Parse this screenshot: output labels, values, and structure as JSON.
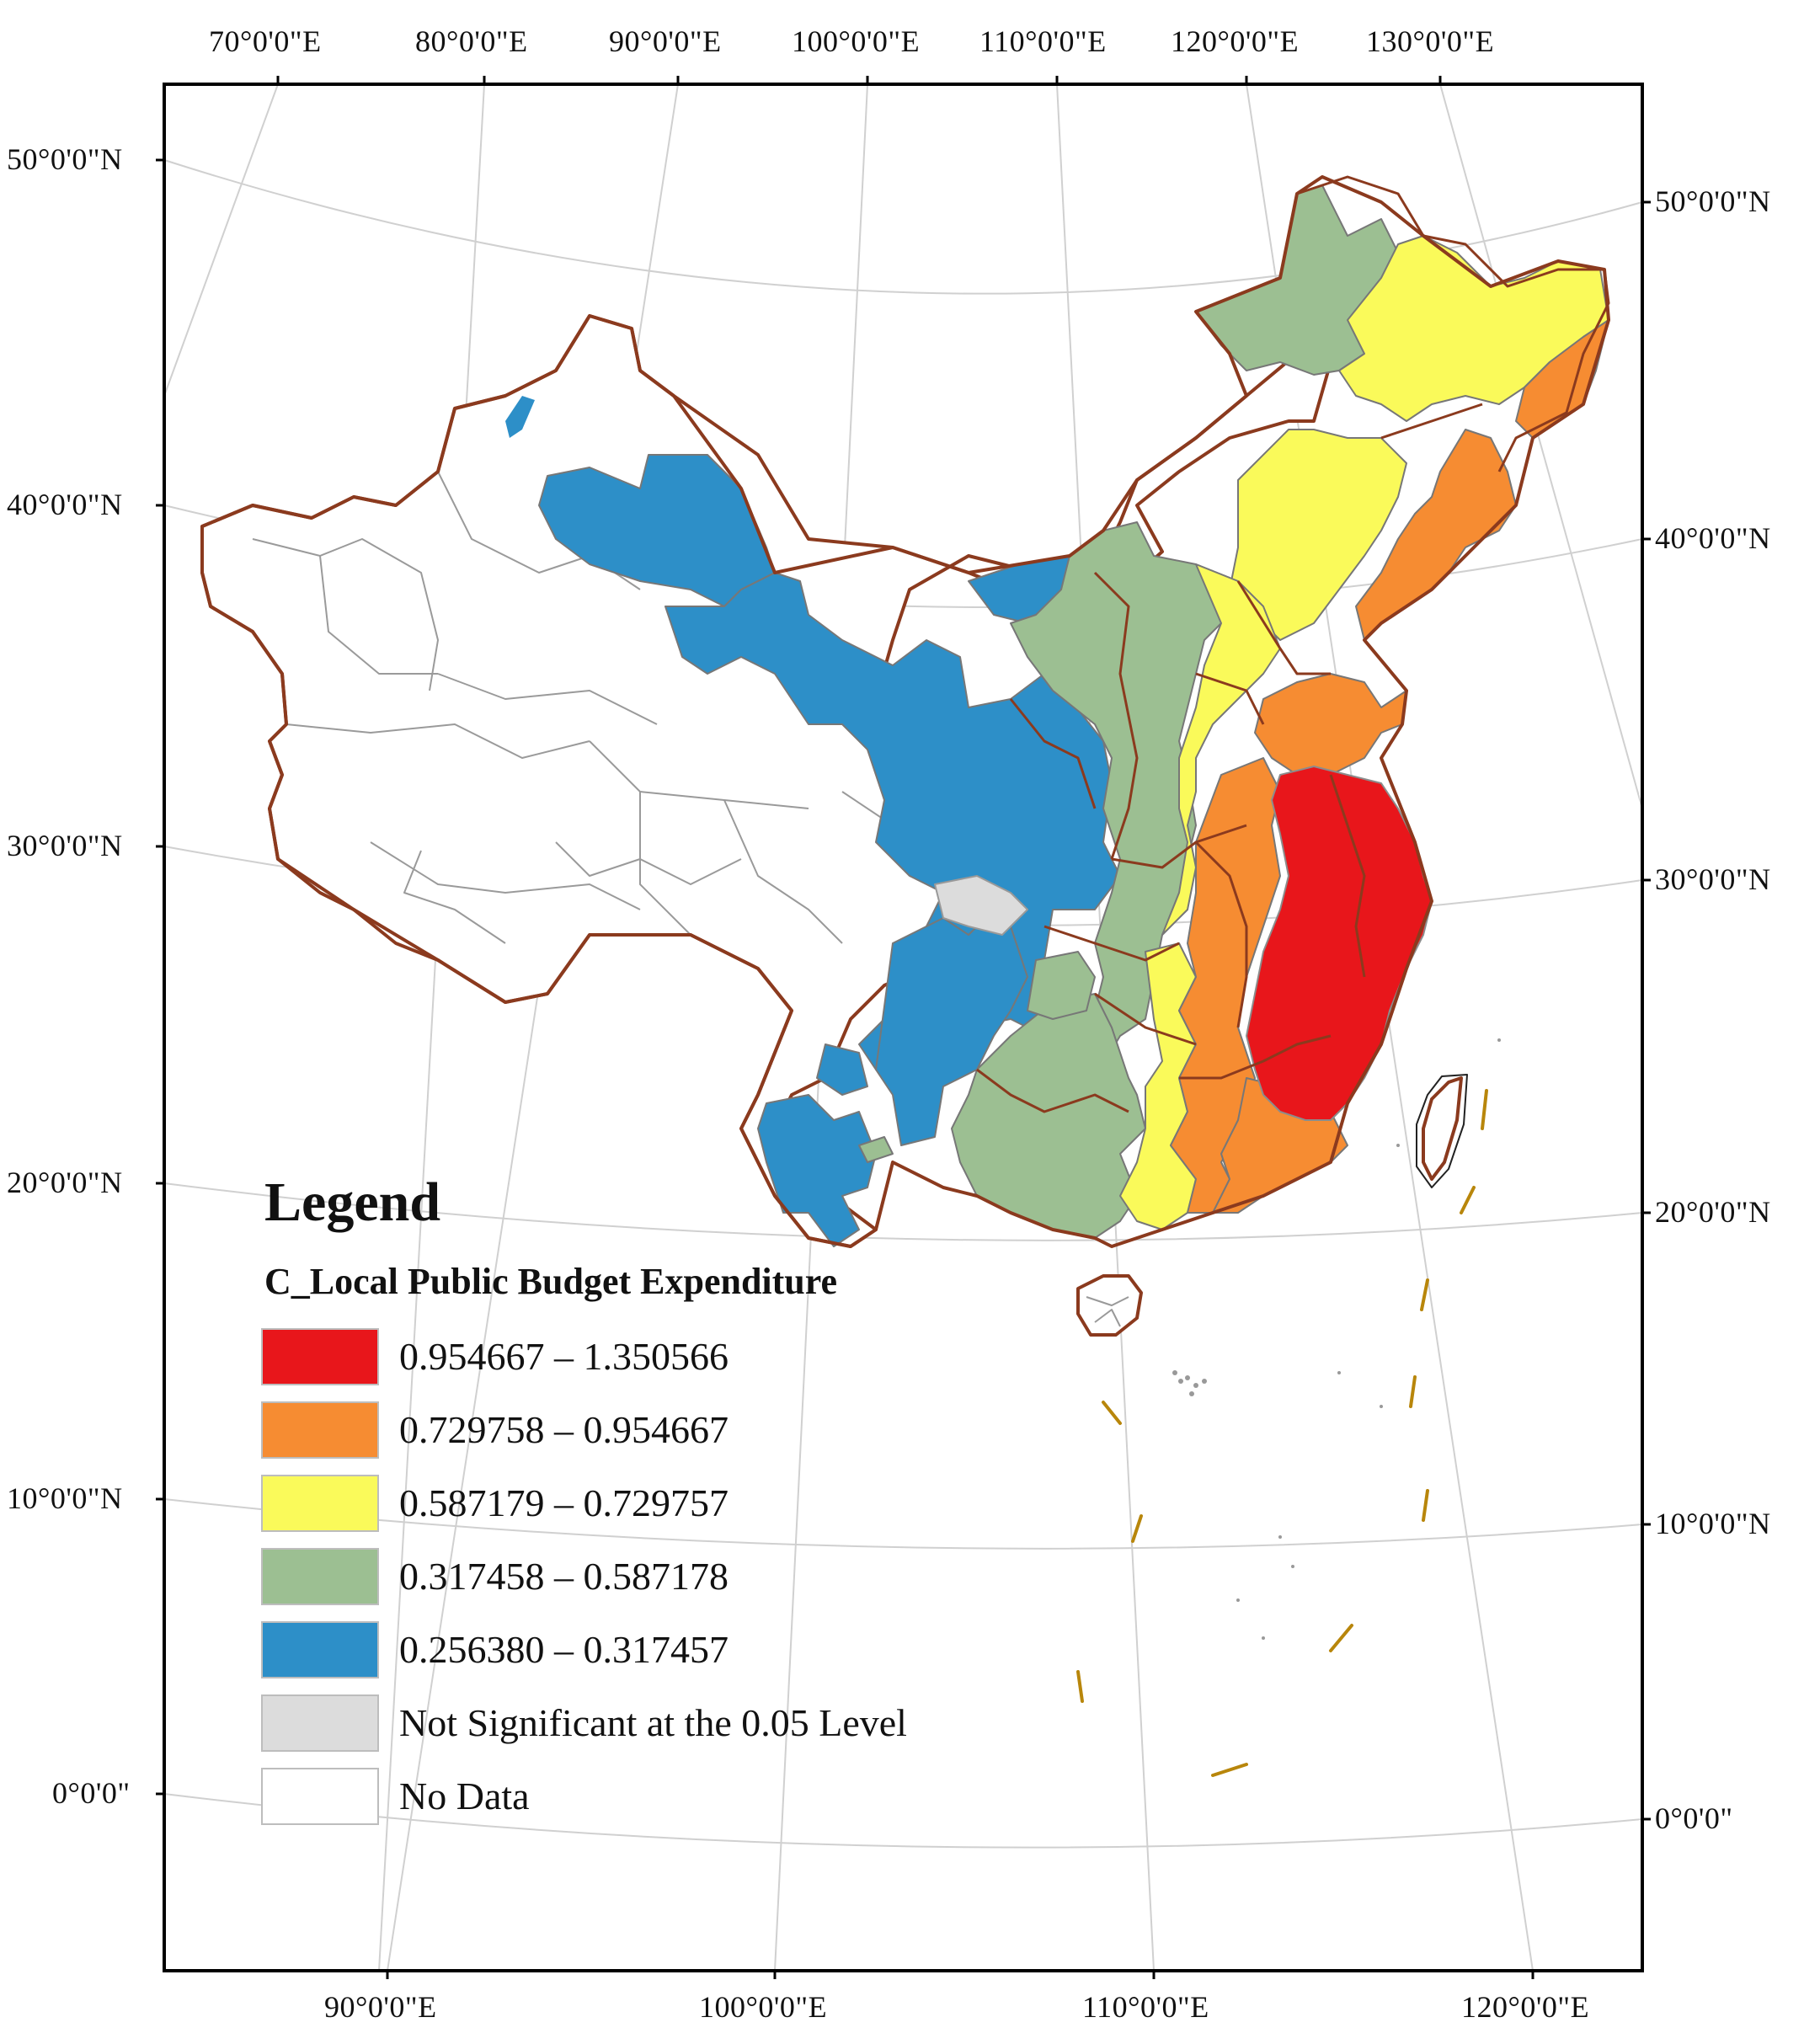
{
  "top_longitude_labels": [
    "70°0'0\"E",
    "80°0'0\"E",
    "90°0'0\"E",
    "100°0'0\"E",
    "110°0'0\"E",
    "120°0'0\"E",
    "130°0'0\"E"
  ],
  "bottom_longitude_labels": [
    "90°0'0\"E",
    "100°0'0\"E",
    "110°0'0\"E",
    "120°0'0\"E"
  ],
  "left_latitude_labels": [
    "50°0'0\"N",
    "40°0'0\"N",
    "30°0'0\"N",
    "20°0'0\"N",
    "10°0'0\"N",
    "0°0'0\""
  ],
  "right_latitude_labels": [
    "50°0'0\"N",
    "40°0'0\"N",
    "30°0'0\"N",
    "20°0'0\"N",
    "10°0'0\"N",
    "0°0'0\""
  ],
  "legend": {
    "title": "Legend",
    "subtitle": "C_Local Public Budget Expenditure",
    "items": [
      {
        "label": "0.954667 – 1.350566",
        "color": "#e8161b"
      },
      {
        "label": "0.729758 – 0.954667",
        "color": "#f68c32"
      },
      {
        "label": "0.587179 – 0.729757",
        "color": "#fafa5a"
      },
      {
        "label": "0.317458 – 0.587178",
        "color": "#9cbf92"
      },
      {
        "label": "0.256380 – 0.317457",
        "color": "#2d8fc8"
      },
      {
        "label": "Not Significant at the 0.05 Level",
        "color": "#dcdcdc"
      },
      {
        "label": "No Data",
        "color": "#ffffff"
      }
    ]
  },
  "colors": {
    "province_border": "#8b3a1e",
    "county_border": "#8c8c8c",
    "graticule": "#d0d0d0",
    "frame": "#000000",
    "island_dash": "#b8860b"
  }
}
